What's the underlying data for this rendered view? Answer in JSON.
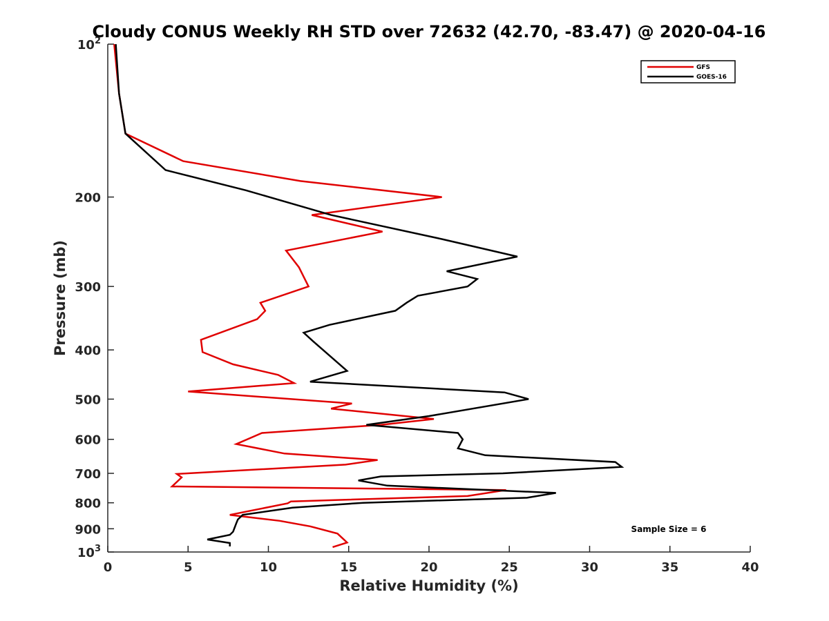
{
  "chart_data": {
    "type": "line",
    "title": "Cloudy CONUS Weekly RH STD over 72632 (42.70, -83.47) @ 2020-04-16",
    "xlabel": "Relative Humidity (%)",
    "ylabel": "Pressure (mb)",
    "xlim": [
      0,
      40
    ],
    "ylim": [
      100,
      1000
    ],
    "yscale": "log",
    "y_reversed": true,
    "grid": false,
    "legend_placement": "top-right",
    "x_ticks": [
      0,
      5,
      10,
      15,
      20,
      25,
      30,
      35,
      40
    ],
    "y_ticks": [
      {
        "value": 100,
        "label": "10",
        "sup": "2"
      },
      {
        "value": 200,
        "label": "200",
        "sup": ""
      },
      {
        "value": 300,
        "label": "300",
        "sup": ""
      },
      {
        "value": 400,
        "label": "400",
        "sup": ""
      },
      {
        "value": 500,
        "label": "500",
        "sup": ""
      },
      {
        "value": 600,
        "label": "600",
        "sup": ""
      },
      {
        "value": 700,
        "label": "700",
        "sup": ""
      },
      {
        "value": 800,
        "label": "800",
        "sup": ""
      },
      {
        "value": 900,
        "label": "900",
        "sup": ""
      },
      {
        "value": 1000,
        "label": "10",
        "sup": "3"
      }
    ],
    "series": [
      {
        "name": "GFS",
        "color": "#e00000",
        "points": [
          [
            0.4,
            100
          ],
          [
            0.7,
            125
          ],
          [
            1.1,
            150
          ],
          [
            4.7,
            170
          ],
          [
            12.0,
            186
          ],
          [
            20.8,
            200
          ],
          [
            12.7,
            217
          ],
          [
            17.1,
            234
          ],
          [
            11.1,
            255
          ],
          [
            11.9,
            275
          ],
          [
            12.5,
            300
          ],
          [
            9.5,
            323
          ],
          [
            9.8,
            335
          ],
          [
            9.3,
            348
          ],
          [
            5.8,
            382
          ],
          [
            5.9,
            404
          ],
          [
            7.8,
            427
          ],
          [
            10.6,
            448
          ],
          [
            11.6,
            465
          ],
          [
            5.0,
            483
          ],
          [
            15.2,
            510
          ],
          [
            13.9,
            522
          ],
          [
            20.3,
            547
          ],
          [
            17.0,
            562
          ],
          [
            9.6,
            583
          ],
          [
            8.0,
            613
          ],
          [
            11.0,
            640
          ],
          [
            16.8,
            659
          ],
          [
            14.8,
            673
          ],
          [
            4.3,
            702
          ],
          [
            4.6,
            713
          ],
          [
            4.0,
            743
          ],
          [
            24.8,
            755
          ],
          [
            22.4,
            776
          ],
          [
            11.4,
            795
          ],
          [
            11.2,
            802
          ],
          [
            7.6,
            845
          ],
          [
            10.7,
            868
          ],
          [
            12.6,
            890
          ],
          [
            14.3,
            920
          ],
          [
            14.7,
            945
          ],
          [
            14.9,
            958
          ],
          [
            14.0,
            978
          ]
        ]
      },
      {
        "name": "GOES-16",
        "color": "#000000",
        "points": [
          [
            0.5,
            100
          ],
          [
            0.7,
            125
          ],
          [
            1.1,
            150
          ],
          [
            3.6,
            177
          ],
          [
            8.6,
            194
          ],
          [
            13.9,
            217
          ],
          [
            20.8,
            242
          ],
          [
            25.5,
            262
          ],
          [
            21.1,
            280
          ],
          [
            23.0,
            290
          ],
          [
            22.4,
            300
          ],
          [
            19.3,
            313
          ],
          [
            18.6,
            323
          ],
          [
            17.9,
            335
          ],
          [
            13.8,
            357
          ],
          [
            12.2,
            370
          ],
          [
            12.8,
            385
          ],
          [
            14.9,
            440
          ],
          [
            12.6,
            462
          ],
          [
            24.7,
            485
          ],
          [
            26.2,
            500
          ],
          [
            20.0,
            540
          ],
          [
            16.1,
            562
          ],
          [
            21.8,
            583
          ],
          [
            22.1,
            600
          ],
          [
            21.8,
            625
          ],
          [
            23.5,
            645
          ],
          [
            31.6,
            665
          ],
          [
            32.0,
            680
          ],
          [
            24.6,
            700
          ],
          [
            17.0,
            710
          ],
          [
            15.6,
            723
          ],
          [
            17.4,
            740
          ],
          [
            27.9,
            765
          ],
          [
            26.1,
            782
          ],
          [
            15.9,
            800
          ],
          [
            11.5,
            818
          ],
          [
            8.4,
            845
          ],
          [
            8.1,
            863
          ],
          [
            8.0,
            878
          ],
          [
            7.9,
            895
          ],
          [
            7.8,
            912
          ],
          [
            7.6,
            925
          ],
          [
            6.2,
            945
          ],
          [
            7.6,
            960
          ],
          [
            7.6,
            975
          ]
        ]
      }
    ],
    "annotations": [
      {
        "text": "Sample Size = 6",
        "position": "lower-right"
      }
    ]
  }
}
